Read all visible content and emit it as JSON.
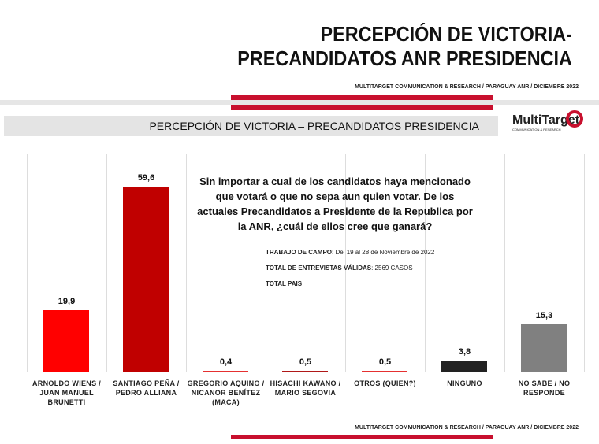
{
  "header": {
    "title_line1": "PERCEPCIÓN DE VICTORIA-",
    "title_line2": "PRECANDIDATOS ANR PRESIDENCIA",
    "source": "MULTITARGET COMMUNICATION & RESEARCH / PARAGUAY ANR / DICIEMBRE  2022"
  },
  "slide": {
    "band_title": "PERCEPCIÓN DE VICTORIA – PRECANDIDATOS  PRESIDENCIA",
    "logo": "MultiTarget",
    "logo_sub": "COMMUNICATION & RESEARCH",
    "source": "MULTITARGET COMMUNICATION & RESEARCH / PARAGUAY ANR / DICIEMBRE  2022"
  },
  "question": "Sin importar a cual de los candidatos haya mencionado que votará o que no sepa aun quien votar.  De los actuales Precandidatos a Presidente de la Republica por la ANR,  ¿cuál de ellos cree que ganará?",
  "fieldwork": {
    "label": "TRABAJO DE CAMPO",
    "value": ": Del 19 al 28 de Noviembre  de  2022",
    "interviews_label": "TOTAL DE ENTREVISTAS VÁLIDAS",
    "interviews_value": ": 2569 CASOS",
    "scope": "TOTAL PAIS"
  },
  "chart_data": {
    "type": "bar",
    "title": "PERCEPCIÓN DE VICTORIA – PRECANDIDATOS  PRESIDENCIA",
    "ylim": [
      0,
      60
    ],
    "categories": [
      "ARNOLDO WIENS / JUAN MANUEL BRUNETTI",
      "SANTIAGO PEÑA / PEDRO ALLIANA",
      "GREGORIO AQUINO / NICANOR BENÍTEZ (MACA)",
      "HISACHI KAWANO / MARIO SEGOVIA",
      "OTROS (QUIEN?)",
      "NINGUNO",
      "NO SABE / NO RESPONDE"
    ],
    "values": [
      19.9,
      59.6,
      0.4,
      0.5,
      0.5,
      3.8,
      15.3
    ],
    "labels": [
      "19,9",
      "59,6",
      "0,4",
      "0,5",
      "0,5",
      "3,8",
      "15,3"
    ],
    "colors": [
      "#ff0000",
      "#c00000",
      "#e53030",
      "#b01818",
      "#e53030",
      "#222222",
      "#808080"
    ]
  }
}
